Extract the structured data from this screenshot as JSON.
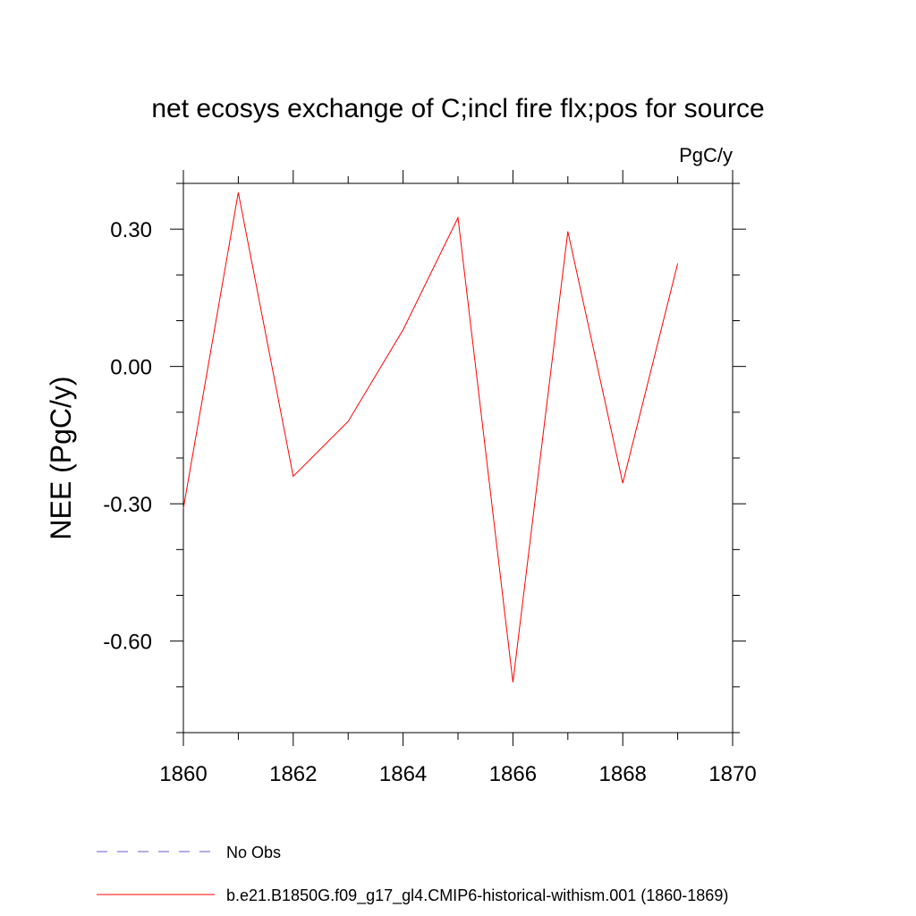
{
  "chart_data": {
    "type": "line",
    "title": "net ecosys exchange of C;incl fire flx;pos for source",
    "units_label": "PgC/y",
    "ylabel": "NEE  (PgC/y)",
    "xlabel": "",
    "xlim": [
      1860,
      1870
    ],
    "ylim": [
      -0.8,
      0.4
    ],
    "x_ticks": [
      1860,
      1862,
      1864,
      1866,
      1868,
      1870
    ],
    "x_tick_labels": [
      "1860",
      "1862",
      "1864",
      "1866",
      "1868",
      "1870"
    ],
    "y_ticks": [
      0.3,
      0.0,
      -0.3,
      -0.6
    ],
    "y_tick_labels": [
      "0.30",
      "0.00",
      "-0.30",
      "-0.60"
    ],
    "y_minor_step": 0.1,
    "x_minor_step": 1,
    "grid": false,
    "legend_position": "bottom-left",
    "series": [
      {
        "name": "b.e21.B1850G.f09_g17_gl4.CMIP6-historical-withism.001 (1860-1869)",
        "color": "#ff0000",
        "dash": "solid",
        "x": [
          1860,
          1861,
          1862,
          1863,
          1864,
          1865,
          1866,
          1867,
          1868,
          1869
        ],
        "y": [
          -0.31,
          0.38,
          -0.24,
          -0.12,
          0.08,
          0.325,
          -0.69,
          0.295,
          -0.255,
          0.225
        ]
      }
    ],
    "legend": [
      {
        "label": "No Obs",
        "color": "#6a5acd",
        "dash": "dashed"
      },
      {
        "label": "b.e21.B1850G.f09_g17_gl4.CMIP6-historical-withism.001 (1860-1869)",
        "color": "#ff0000",
        "dash": "solid"
      }
    ]
  }
}
